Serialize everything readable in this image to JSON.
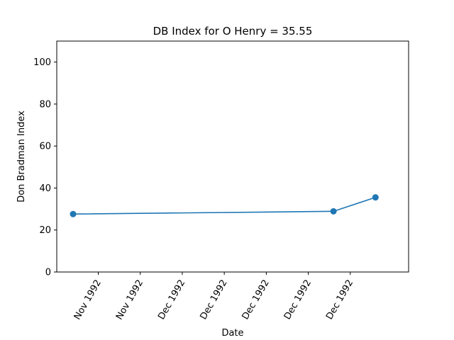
{
  "chart_data": {
    "type": "line",
    "title": "DB Index for O Henry = 35.55",
    "xlabel": "Date",
    "ylabel": "Don Bradman Index",
    "ylim": [
      0,
      110
    ],
    "yticks": [
      0,
      20,
      40,
      60,
      80,
      100
    ],
    "xlim": [
      "1992-11-14",
      "1992-12-22"
    ],
    "xticks": [
      {
        "date": "1992-11-17",
        "label": "Nov 1992"
      },
      {
        "date": "1992-11-22",
        "label": "Nov 1992"
      },
      {
        "date": "1992-11-27",
        "label": "Dec 1992"
      },
      {
        "date": "1992-12-02",
        "label": "Dec 1992"
      },
      {
        "date": "1992-12-07",
        "label": "Dec 1992"
      },
      {
        "date": "1992-12-12",
        "label": "Dec 1992"
      },
      {
        "date": "1992-12-17",
        "label": "Dec 1992"
      }
    ],
    "series": [
      {
        "color": "#1f77b4",
        "points": [
          {
            "x": "1992-11-14",
            "y": 27.6
          },
          {
            "x": "1992-12-15",
            "y": 28.9
          },
          {
            "x": "1992-12-20",
            "y": 35.55
          }
        ]
      }
    ],
    "grid": false,
    "legend": "none"
  }
}
